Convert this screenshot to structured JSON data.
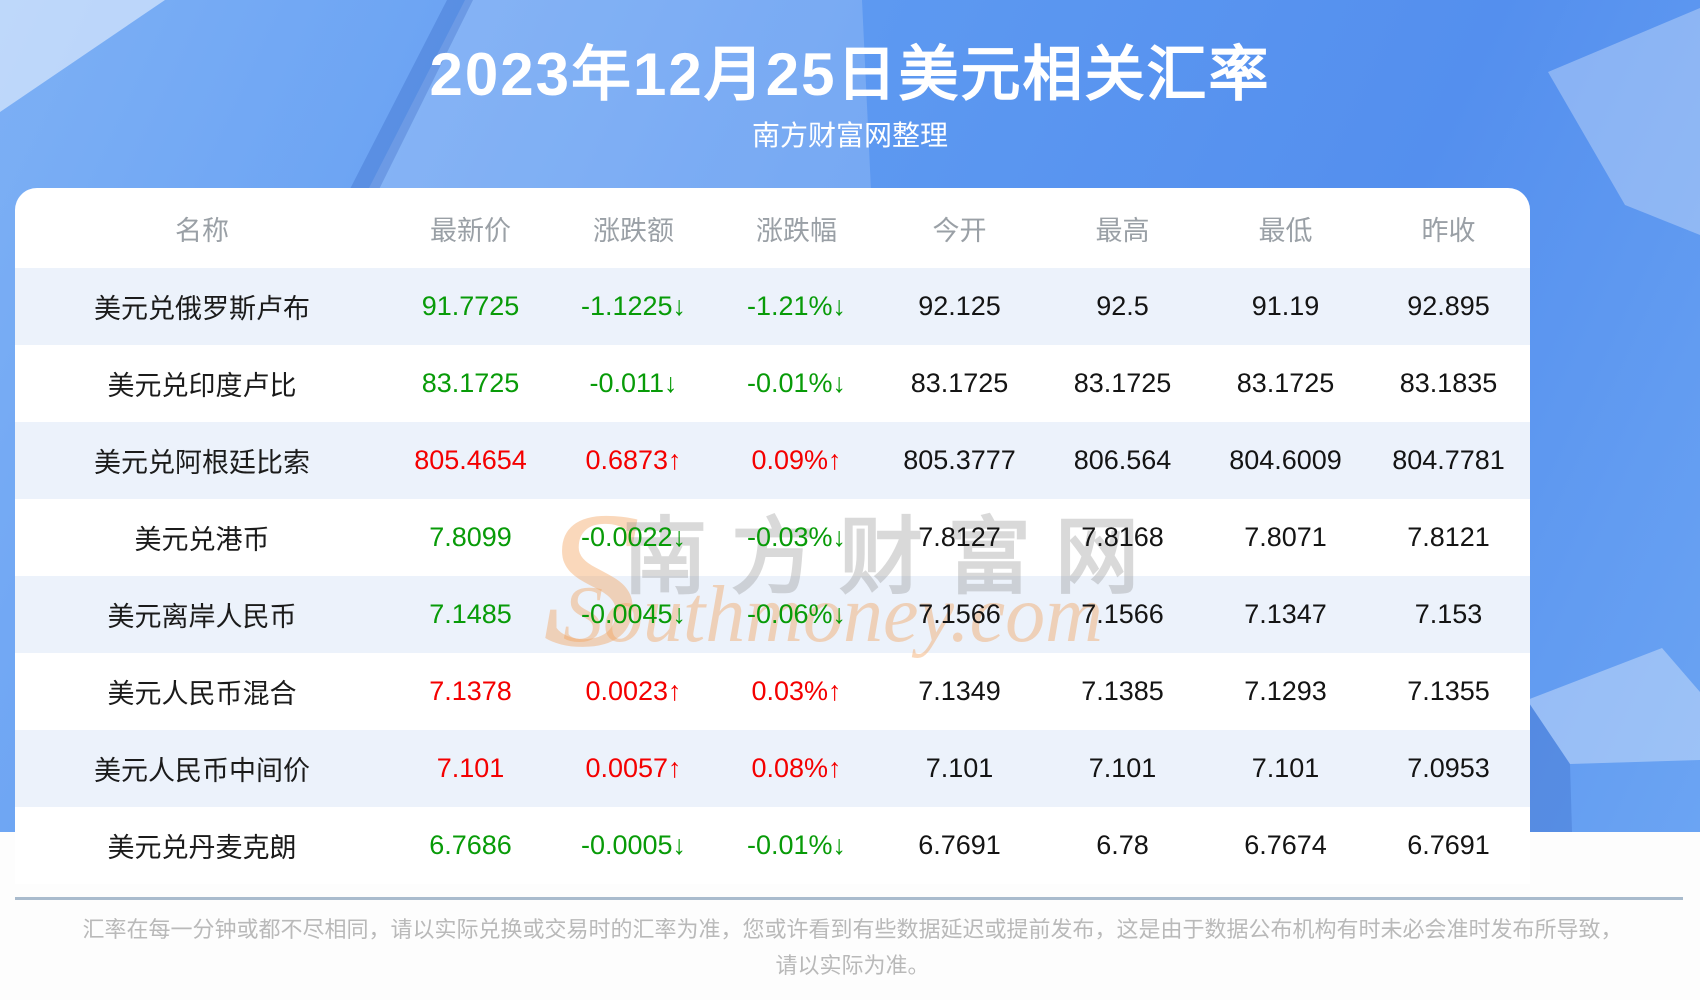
{
  "header": {
    "title": "2023年12月25日美元相关汇率",
    "subtitle": "南方财富网整理"
  },
  "watermark": {
    "logo_letter": "S",
    "cn": "南方财富网",
    "en": "Southmoney.com"
  },
  "arrows": {
    "up": "↑",
    "down": "↓"
  },
  "chart_data": {
    "type": "table",
    "title": "2023年12月25日美元相关汇率",
    "columns": [
      "名称",
      "最新价",
      "涨跌额",
      "涨跌幅",
      "今开",
      "最高",
      "最低",
      "昨收"
    ],
    "rows": [
      {
        "name": "美元兑俄罗斯卢布",
        "latest": "91.7725",
        "change": "-1.1225",
        "change_pct": "-1.21%",
        "open": "92.125",
        "high": "92.5",
        "low": "91.19",
        "prev_close": "92.895",
        "direction": "down"
      },
      {
        "name": "美元兑印度卢比",
        "latest": "83.1725",
        "change": "-0.011",
        "change_pct": "-0.01%",
        "open": "83.1725",
        "high": "83.1725",
        "low": "83.1725",
        "prev_close": "83.1835",
        "direction": "down"
      },
      {
        "name": "美元兑阿根廷比索",
        "latest": "805.4654",
        "change": "0.6873",
        "change_pct": "0.09%",
        "open": "805.3777",
        "high": "806.564",
        "low": "804.6009",
        "prev_close": "804.7781",
        "direction": "up"
      },
      {
        "name": "美元兑港币",
        "latest": "7.8099",
        "change": "-0.0022",
        "change_pct": "-0.03%",
        "open": "7.8127",
        "high": "7.8168",
        "low": "7.8071",
        "prev_close": "7.8121",
        "direction": "down"
      },
      {
        "name": "美元离岸人民币",
        "latest": "7.1485",
        "change": "-0.0045",
        "change_pct": "-0.06%",
        "open": "7.1566",
        "high": "7.1566",
        "low": "7.1347",
        "prev_close": "7.153",
        "direction": "down"
      },
      {
        "name": "美元人民币混合",
        "latest": "7.1378",
        "change": "0.0023",
        "change_pct": "0.03%",
        "open": "7.1349",
        "high": "7.1385",
        "low": "7.1293",
        "prev_close": "7.1355",
        "direction": "up"
      },
      {
        "name": "美元人民币中间价",
        "latest": "7.101",
        "change": "0.0057",
        "change_pct": "0.08%",
        "open": "7.101",
        "high": "7.101",
        "low": "7.101",
        "prev_close": "7.0953",
        "direction": "up"
      },
      {
        "name": "美元兑丹麦克朗",
        "latest": "6.7686",
        "change": "-0.0005",
        "change_pct": "-0.01%",
        "open": "6.7691",
        "high": "6.78",
        "low": "6.7674",
        "prev_close": "6.7691",
        "direction": "down"
      }
    ]
  },
  "footer": {
    "disclaimer": "汇率在每一分钟或都不尽相同，请以实际兑换或交易时的汇率为准，您或许看到有些数据延迟或提前发布，这是由于数据公布机构有时未必会准时发布所导致，请以实际为准。"
  },
  "colors": {
    "up": "#f40000",
    "down": "#089b08",
    "stripe": "#ecf2fb",
    "header_text": "#9aa0a6",
    "text": "#141414",
    "footer_text": "#b9b9b9",
    "divider": "#a9bbcd",
    "banner_blue": "#5d99f1",
    "banner_blue_light": "#7db0f5",
    "banner_blue_deep": "#548fee"
  }
}
